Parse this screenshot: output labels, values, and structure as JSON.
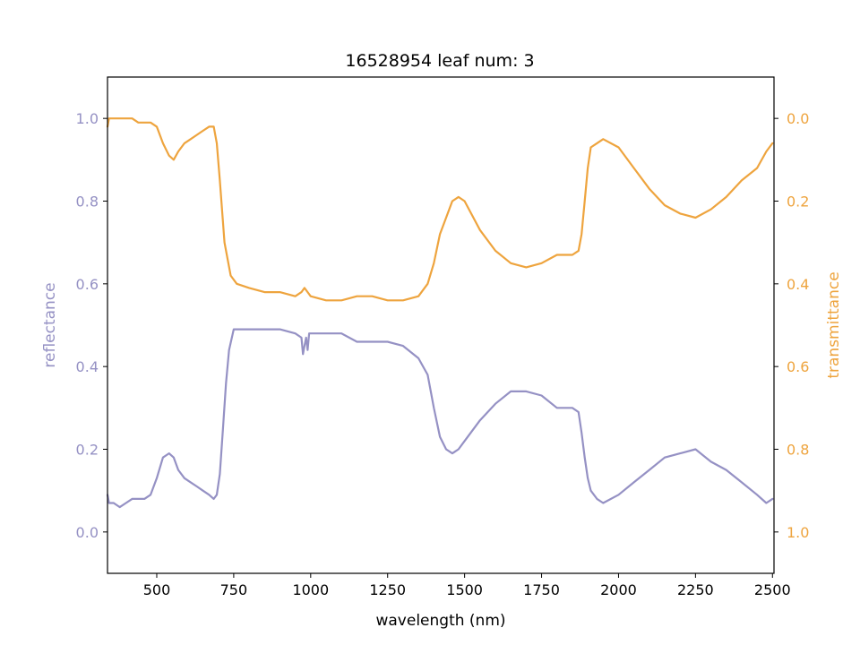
{
  "chart_data": {
    "type": "line",
    "title": "16528954 leaf num: 3",
    "xlabel": "wavelength (nm)",
    "xlim": [
      340,
      2505
    ],
    "xticks": [
      500,
      750,
      1000,
      1250,
      1500,
      1750,
      2000,
      2250,
      2500
    ],
    "grid": false,
    "legend": "none",
    "y_left": {
      "label": "reflectance",
      "color": "#9591c4",
      "lim": [
        -0.1,
        1.1
      ],
      "ticks": [
        "0.0",
        "0.2",
        "0.4",
        "0.6",
        "0.8",
        "1.0"
      ]
    },
    "y_right": {
      "label": "transmittance",
      "color": "#eea43e",
      "lim": [
        1.1,
        -0.1
      ],
      "inverted": true,
      "ticks": [
        "0.0",
        "0.2",
        "0.4",
        "0.6",
        "0.8",
        "1.0"
      ]
    },
    "series": [
      {
        "axis": "left",
        "color": "#9591c4",
        "x": [
          340,
          345,
          360,
          380,
          400,
          420,
          440,
          460,
          480,
          500,
          520,
          540,
          555,
          570,
          590,
          610,
          630,
          650,
          670,
          685,
          695,
          705,
          715,
          725,
          735,
          750,
          770,
          800,
          850,
          900,
          950,
          970,
          975,
          980,
          985,
          990,
          995,
          1000,
          1050,
          1100,
          1150,
          1200,
          1250,
          1300,
          1350,
          1380,
          1400,
          1420,
          1440,
          1460,
          1480,
          1500,
          1550,
          1600,
          1650,
          1700,
          1750,
          1800,
          1850,
          1870,
          1880,
          1890,
          1900,
          1910,
          1930,
          1950,
          2000,
          2050,
          2100,
          2150,
          2200,
          2250,
          2300,
          2350,
          2400,
          2450,
          2480,
          2500
        ],
        "y": [
          0.09,
          0.07,
          0.07,
          0.06,
          0.07,
          0.08,
          0.08,
          0.08,
          0.09,
          0.13,
          0.18,
          0.19,
          0.18,
          0.15,
          0.13,
          0.12,
          0.11,
          0.1,
          0.09,
          0.08,
          0.09,
          0.14,
          0.25,
          0.36,
          0.44,
          0.49,
          0.49,
          0.49,
          0.49,
          0.49,
          0.48,
          0.47,
          0.43,
          0.45,
          0.47,
          0.44,
          0.48,
          0.48,
          0.48,
          0.48,
          0.46,
          0.46,
          0.46,
          0.45,
          0.42,
          0.38,
          0.3,
          0.23,
          0.2,
          0.19,
          0.2,
          0.22,
          0.27,
          0.31,
          0.34,
          0.34,
          0.33,
          0.3,
          0.3,
          0.29,
          0.24,
          0.18,
          0.13,
          0.1,
          0.08,
          0.07,
          0.09,
          0.12,
          0.15,
          0.18,
          0.19,
          0.2,
          0.17,
          0.15,
          0.12,
          0.09,
          0.07,
          0.08
        ]
      },
      {
        "axis": "right",
        "color": "#eea43e",
        "x": [
          340,
          345,
          360,
          380,
          400,
          420,
          440,
          460,
          480,
          500,
          520,
          540,
          555,
          570,
          590,
          610,
          630,
          650,
          670,
          685,
          695,
          705,
          720,
          740,
          760,
          800,
          850,
          900,
          950,
          970,
          980,
          990,
          1000,
          1050,
          1100,
          1150,
          1200,
          1250,
          1300,
          1350,
          1380,
          1400,
          1420,
          1440,
          1460,
          1480,
          1500,
          1550,
          1600,
          1650,
          1700,
          1750,
          1800,
          1850,
          1870,
          1880,
          1890,
          1900,
          1910,
          1930,
          1950,
          2000,
          2050,
          2100,
          2150,
          2200,
          2250,
          2300,
          2350,
          2400,
          2450,
          2480,
          2500
        ],
        "y": [
          0.02,
          0.0,
          0.0,
          0.0,
          0.0,
          0.0,
          0.01,
          0.01,
          0.01,
          0.02,
          0.06,
          0.09,
          0.1,
          0.08,
          0.06,
          0.05,
          0.04,
          0.03,
          0.02,
          0.02,
          0.06,
          0.15,
          0.3,
          0.38,
          0.4,
          0.41,
          0.42,
          0.42,
          0.43,
          0.42,
          0.41,
          0.42,
          0.43,
          0.44,
          0.44,
          0.43,
          0.43,
          0.44,
          0.44,
          0.43,
          0.4,
          0.35,
          0.28,
          0.24,
          0.2,
          0.19,
          0.2,
          0.27,
          0.32,
          0.35,
          0.36,
          0.35,
          0.33,
          0.33,
          0.32,
          0.28,
          0.2,
          0.12,
          0.07,
          0.06,
          0.05,
          0.07,
          0.12,
          0.17,
          0.21,
          0.23,
          0.24,
          0.22,
          0.19,
          0.15,
          0.12,
          0.08,
          0.06
        ]
      }
    ]
  }
}
